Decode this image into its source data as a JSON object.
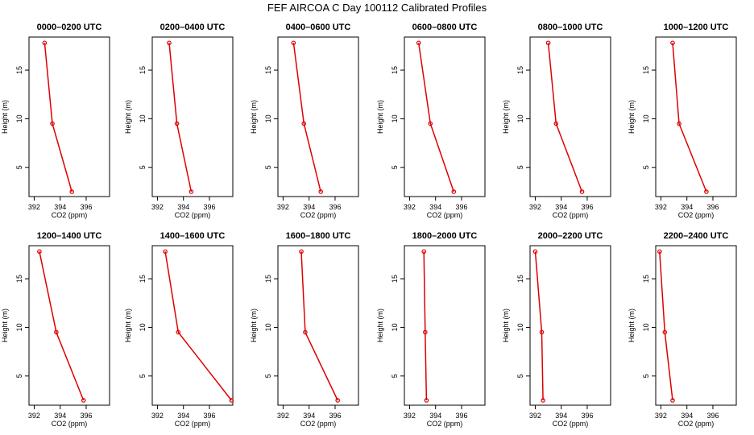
{
  "figure": {
    "title": "FEF AIRCOA C  Day 100112  Calibrated Profiles"
  },
  "colors": {
    "series": "#dd0000",
    "axis": "#000000",
    "background": "#ffffff"
  },
  "chart_data": [
    {
      "type": "line",
      "title": "0000–0200 UTC",
      "xlabel": "CO2 (ppm)",
      "ylabel": "Height (m)",
      "xticks": [
        392,
        394,
        396
      ],
      "yticks": [
        5,
        10,
        15
      ],
      "xlim": [
        391.6,
        397.8
      ],
      "ylim": [
        2.0,
        18.4
      ],
      "x": [
        392.8,
        393.4,
        394.9
      ],
      "y": [
        17.8,
        9.5,
        2.5
      ]
    },
    {
      "type": "line",
      "title": "0200–0400 UTC",
      "xlabel": "CO2 (ppm)",
      "ylabel": "Height (m)",
      "xticks": [
        392,
        394,
        396
      ],
      "yticks": [
        5,
        10,
        15
      ],
      "xlim": [
        391.6,
        397.8
      ],
      "ylim": [
        2.0,
        18.4
      ],
      "x": [
        392.9,
        393.5,
        394.6
      ],
      "y": [
        17.8,
        9.5,
        2.5
      ]
    },
    {
      "type": "line",
      "title": "0400–0600 UTC",
      "xlabel": "CO2 (ppm)",
      "ylabel": "Height (m)",
      "xticks": [
        392,
        394,
        396
      ],
      "yticks": [
        5,
        10,
        15
      ],
      "xlim": [
        391.6,
        397.8
      ],
      "ylim": [
        2.0,
        18.4
      ],
      "x": [
        392.8,
        393.6,
        394.9
      ],
      "y": [
        17.8,
        9.5,
        2.5
      ]
    },
    {
      "type": "line",
      "title": "0600–0800 UTC",
      "xlabel": "CO2 (ppm)",
      "ylabel": "Height (m)",
      "xticks": [
        392,
        394,
        396
      ],
      "yticks": [
        5,
        10,
        15
      ],
      "xlim": [
        391.6,
        397.8
      ],
      "ylim": [
        2.0,
        18.4
      ],
      "x": [
        392.7,
        393.6,
        395.4
      ],
      "y": [
        17.8,
        9.5,
        2.5
      ]
    },
    {
      "type": "line",
      "title": "0800–1000 UTC",
      "xlabel": "CO2 (ppm)",
      "ylabel": "Height (m)",
      "xticks": [
        392,
        394,
        396
      ],
      "yticks": [
        5,
        10,
        15
      ],
      "xlim": [
        391.6,
        397.8
      ],
      "ylim": [
        2.0,
        18.4
      ],
      "x": [
        393.0,
        393.6,
        395.6
      ],
      "y": [
        17.8,
        9.5,
        2.5
      ]
    },
    {
      "type": "line",
      "title": "1000–1200 UTC",
      "xlabel": "CO2 (ppm)",
      "ylabel": "Height (m)",
      "xticks": [
        392,
        394,
        396
      ],
      "yticks": [
        5,
        10,
        15
      ],
      "xlim": [
        391.6,
        397.8
      ],
      "ylim": [
        2.0,
        18.4
      ],
      "x": [
        392.9,
        393.4,
        395.5
      ],
      "y": [
        17.8,
        9.5,
        2.5
      ]
    },
    {
      "type": "line",
      "title": "1200–1400 UTC",
      "xlabel": "CO2 (ppm)",
      "ylabel": "Height (m)",
      "xticks": [
        392,
        394,
        396
      ],
      "yticks": [
        5,
        10,
        15
      ],
      "xlim": [
        391.6,
        397.8
      ],
      "ylim": [
        2.0,
        18.4
      ],
      "x": [
        392.4,
        393.7,
        395.8
      ],
      "y": [
        17.8,
        9.5,
        2.5
      ]
    },
    {
      "type": "line",
      "title": "1400–1600 UTC",
      "xlabel": "CO2 (ppm)",
      "ylabel": "Height (m)",
      "xticks": [
        392,
        394,
        396
      ],
      "yticks": [
        5,
        10,
        15
      ],
      "xlim": [
        391.6,
        397.8
      ],
      "ylim": [
        2.0,
        18.4
      ],
      "x": [
        392.6,
        393.6,
        397.7
      ],
      "y": [
        17.8,
        9.5,
        2.5
      ]
    },
    {
      "type": "line",
      "title": "1600–1800 UTC",
      "xlabel": "CO2 (ppm)",
      "ylabel": "Height (m)",
      "xticks": [
        392,
        394,
        396
      ],
      "yticks": [
        5,
        10,
        15
      ],
      "xlim": [
        391.6,
        397.8
      ],
      "ylim": [
        2.0,
        18.4
      ],
      "x": [
        393.4,
        393.7,
        396.2
      ],
      "y": [
        17.8,
        9.5,
        2.5
      ]
    },
    {
      "type": "line",
      "title": "1800–2000 UTC",
      "xlabel": "CO2 (ppm)",
      "ylabel": "Height (m)",
      "xticks": [
        392,
        394,
        396
      ],
      "yticks": [
        5,
        10,
        15
      ],
      "xlim": [
        391.6,
        397.8
      ],
      "ylim": [
        2.0,
        18.4
      ],
      "x": [
        393.1,
        393.2,
        393.3
      ],
      "y": [
        17.8,
        9.5,
        2.5
      ]
    },
    {
      "type": "line",
      "title": "2000–2200 UTC",
      "xlabel": "CO2 (ppm)",
      "ylabel": "Height (m)",
      "xticks": [
        392,
        394,
        396
      ],
      "yticks": [
        5,
        10,
        15
      ],
      "xlim": [
        391.6,
        397.8
      ],
      "ylim": [
        2.0,
        18.4
      ],
      "x": [
        392.0,
        392.5,
        392.6
      ],
      "y": [
        17.8,
        9.5,
        2.5
      ]
    },
    {
      "type": "line",
      "title": "2200–2400 UTC",
      "xlabel": "CO2 (ppm)",
      "ylabel": "Height (m)",
      "xticks": [
        392,
        394,
        396
      ],
      "yticks": [
        5,
        10,
        15
      ],
      "xlim": [
        391.6,
        397.8
      ],
      "ylim": [
        2.0,
        18.4
      ],
      "x": [
        391.9,
        392.3,
        392.9
      ],
      "y": [
        17.8,
        9.5,
        2.5
      ]
    }
  ]
}
